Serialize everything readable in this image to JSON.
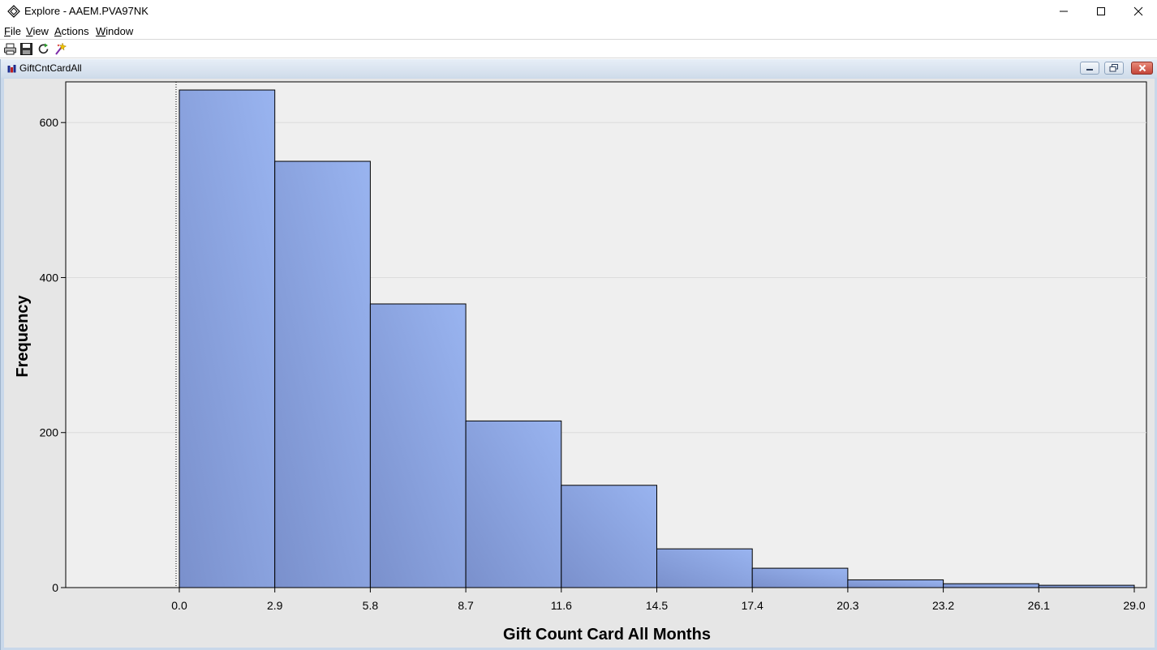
{
  "window": {
    "title": "Explore - AAEM.PVA97NK",
    "app_icon": "explore-diamond-icon"
  },
  "menu": [
    {
      "label": "File",
      "underline": "F",
      "rest": "ile"
    },
    {
      "label": "View",
      "underline": "V",
      "rest": "iew"
    },
    {
      "label": "Actions",
      "underline": "A",
      "rest": "ctions"
    },
    {
      "label": "Window",
      "underline": "W",
      "rest": "indow"
    }
  ],
  "toolbar": [
    "print-icon",
    "save-icon",
    "refresh-icon",
    "wizard-icon"
  ],
  "subwindow": {
    "title": "GiftCntCardAll",
    "icon": "chart-icon"
  },
  "colors": {
    "bar_light": "#99b4f0",
    "bar_dark": "#7a90cc",
    "plot_bg": "#efefef",
    "frame_bg": "#e6e6e6"
  },
  "chart_data": {
    "type": "bar",
    "subtype": "histogram",
    "title": "",
    "xlabel": "Gift Count Card All Months",
    "ylabel": "Frequency",
    "bin_edges": [
      0.0,
      2.9,
      5.8,
      8.7,
      11.6,
      14.5,
      17.4,
      20.3,
      23.2,
      26.1,
      29.0
    ],
    "x_tick_labels": [
      "0.0",
      "2.9",
      "5.8",
      "8.7",
      "11.6",
      "14.5",
      "17.4",
      "20.3",
      "23.2",
      "26.1",
      "29.0"
    ],
    "values": [
      642,
      550,
      366,
      215,
      132,
      50,
      25,
      10,
      5,
      3
    ],
    "y_ticks": [
      0,
      200,
      400,
      600
    ],
    "ylim": [
      0,
      650
    ],
    "grid": "horizontal",
    "reference_line_at": 0.0
  }
}
